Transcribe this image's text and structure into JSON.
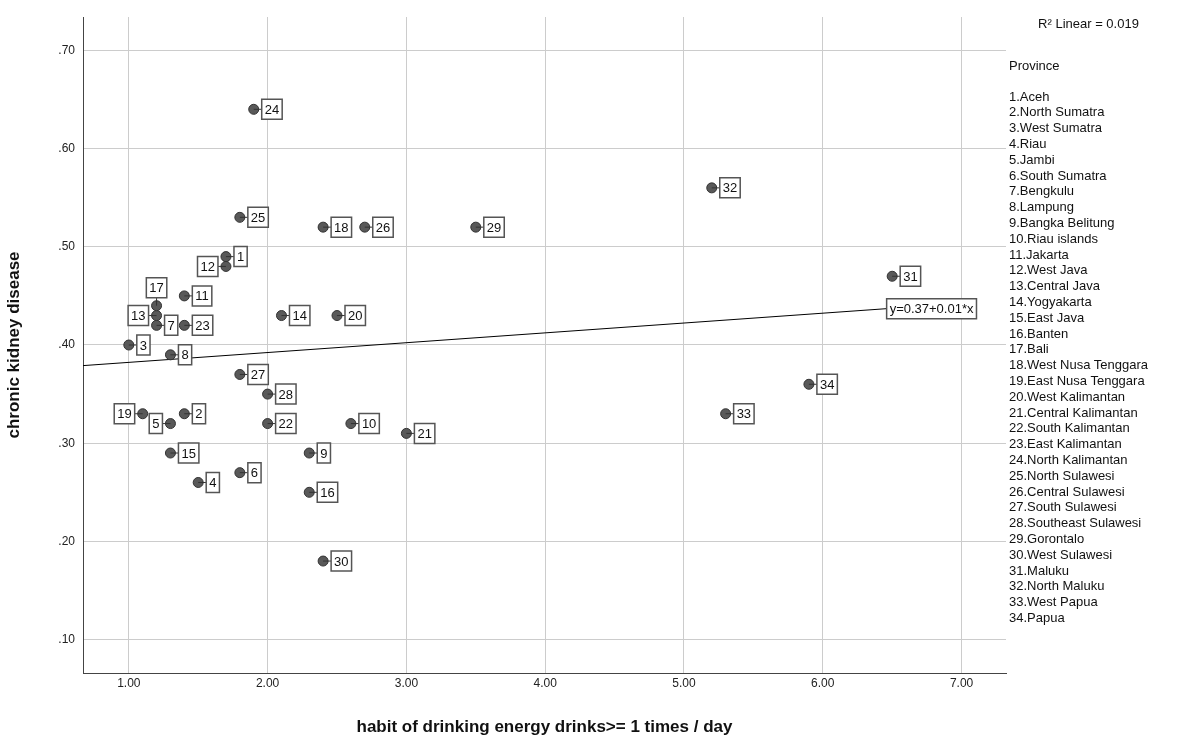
{
  "chart_data": {
    "type": "scatter",
    "xlabel": "habit of drinking energy drinks>= 1 times / day",
    "ylabel": "chronic kidney disease",
    "xlim": [
      0.67,
      7.32
    ],
    "ylim": [
      0.066,
      0.734
    ],
    "xticks": [
      {
        "value": 1,
        "label": "1.00"
      },
      {
        "value": 2,
        "label": "2.00"
      },
      {
        "value": 3,
        "label": "3.00"
      },
      {
        "value": 4,
        "label": "4.00"
      },
      {
        "value": 5,
        "label": "5.00"
      },
      {
        "value": 6,
        "label": "6.00"
      },
      {
        "value": 7,
        "label": "7.00"
      }
    ],
    "yticks": [
      {
        "value": 0.1,
        "label": ".10"
      },
      {
        "value": 0.2,
        "label": ".20"
      },
      {
        "value": 0.3,
        "label": ".30"
      },
      {
        "value": 0.4,
        "label": ".40"
      },
      {
        "value": 0.5,
        "label": ".50"
      },
      {
        "value": 0.6,
        "label": ".60"
      },
      {
        "value": 0.7,
        "label": ".70"
      }
    ],
    "grid": true,
    "marker": "circle",
    "series": [
      {
        "color": "#595959",
        "x": [
          1.7,
          1.4,
          1.0,
          1.5,
          1.3,
          1.8,
          1.2,
          1.3,
          2.3,
          2.6,
          1.4,
          1.7,
          1.2,
          2.1,
          1.3,
          2.3,
          1.2,
          2.4,
          1.1,
          2.5,
          3.0,
          2.0,
          1.4,
          1.9,
          1.8,
          2.7,
          1.8,
          2.0,
          3.5,
          2.4,
          6.5,
          5.2,
          5.3,
          5.9
        ],
        "values": [
          0.49,
          0.33,
          0.4,
          0.26,
          0.32,
          0.27,
          0.42,
          0.39,
          0.29,
          0.32,
          0.45,
          0.48,
          0.43,
          0.43,
          0.29,
          0.25,
          0.44,
          0.52,
          0.33,
          0.43,
          0.31,
          0.32,
          0.42,
          0.64,
          0.53,
          0.52,
          0.37,
          0.35,
          0.52,
          0.18,
          0.47,
          0.56,
          0.33,
          0.36
        ]
      },
      {
        "type": "line",
        "color": "#000000",
        "marker": "none",
        "x": [
          0.67,
          6.46
        ],
        "values": [
          0.379,
          0.437
        ]
      }
    ],
    "annotations": [
      "R² Linear = 0.019",
      "Province",
      "1.Aceh",
      "2.North Sumatra",
      "3.West Sumatra",
      "4.Riau",
      "5.Jambi",
      "6.South Sumatra",
      "7.Bengkulu",
      "8.Lampung",
      "9.Bangka Belitung",
      "10.Riau islands",
      "11.Jakarta",
      "12.West Java",
      "13.Central Java",
      "14.Yogyakarta",
      "15.East Java",
      "16.Banten",
      "17.Bali",
      "18.West Nusa Tenggara",
      "19.East Nusa Tenggara",
      "20.West Kalimantan",
      "21.Central Kalimantan",
      "22.South Kalimantan",
      "23.East Kalimantan",
      "24.North Kalimantan",
      "25.North Sulawesi",
      "26.Central Sulawesi",
      "27.South Sulawesi",
      "28.Southeast Sulawesi",
      "29.Gorontalo",
      "30.West Sulawesi",
      "31.Maluku",
      "32.North Maluku",
      "33.West Papua",
      "34.Papua",
      {
        "text": "y=0.37+0.01*x",
        "x": 6.46,
        "y": 0.437
      },
      {
        "text": "1",
        "x": 1.7,
        "y": 0.49
      },
      {
        "text": "2",
        "x": 1.4,
        "y": 0.33
      },
      {
        "text": "3",
        "x": 1.0,
        "y": 0.4
      },
      {
        "text": "4",
        "x": 1.5,
        "y": 0.26
      },
      {
        "text": "5",
        "x": 1.3,
        "y": 0.32
      },
      {
        "text": "6",
        "x": 1.8,
        "y": 0.27
      },
      {
        "text": "7",
        "x": 1.2,
        "y": 0.42
      },
      {
        "text": "8",
        "x": 1.3,
        "y": 0.39
      },
      {
        "text": "9",
        "x": 2.3,
        "y": 0.29
      },
      {
        "text": "10",
        "x": 2.6,
        "y": 0.32
      },
      {
        "text": "11",
        "x": 1.4,
        "y": 0.45
      },
      {
        "text": "12",
        "x": 1.7,
        "y": 0.48
      },
      {
        "text": "13",
        "x": 1.2,
        "y": 0.43
      },
      {
        "text": "14",
        "x": 2.1,
        "y": 0.43
      },
      {
        "text": "15",
        "x": 1.3,
        "y": 0.29
      },
      {
        "text": "16",
        "x": 2.3,
        "y": 0.25
      },
      {
        "text": "17",
        "x": 1.2,
        "y": 0.44
      },
      {
        "text": "18",
        "x": 2.4,
        "y": 0.52
      },
      {
        "text": "19",
        "x": 1.1,
        "y": 0.33
      },
      {
        "text": "20",
        "x": 2.5,
        "y": 0.43
      },
      {
        "text": "21",
        "x": 3.0,
        "y": 0.31
      },
      {
        "text": "22",
        "x": 2.0,
        "y": 0.32
      },
      {
        "text": "23",
        "x": 1.4,
        "y": 0.42
      },
      {
        "text": "24",
        "x": 1.9,
        "y": 0.64
      },
      {
        "text": "25",
        "x": 1.8,
        "y": 0.53
      },
      {
        "text": "26",
        "x": 2.7,
        "y": 0.52
      },
      {
        "text": "27",
        "x": 1.8,
        "y": 0.37
      },
      {
        "text": "28",
        "x": 2.0,
        "y": 0.35
      },
      {
        "text": "29",
        "x": 3.5,
        "y": 0.52
      },
      {
        "text": "30",
        "x": 2.4,
        "y": 0.18
      },
      {
        "text": "31",
        "x": 6.5,
        "y": 0.47
      },
      {
        "text": "32",
        "x": 5.2,
        "y": 0.56
      },
      {
        "text": "33",
        "x": 5.3,
        "y": 0.33
      },
      {
        "text": "34",
        "x": 5.9,
        "y": 0.36
      }
    ]
  }
}
